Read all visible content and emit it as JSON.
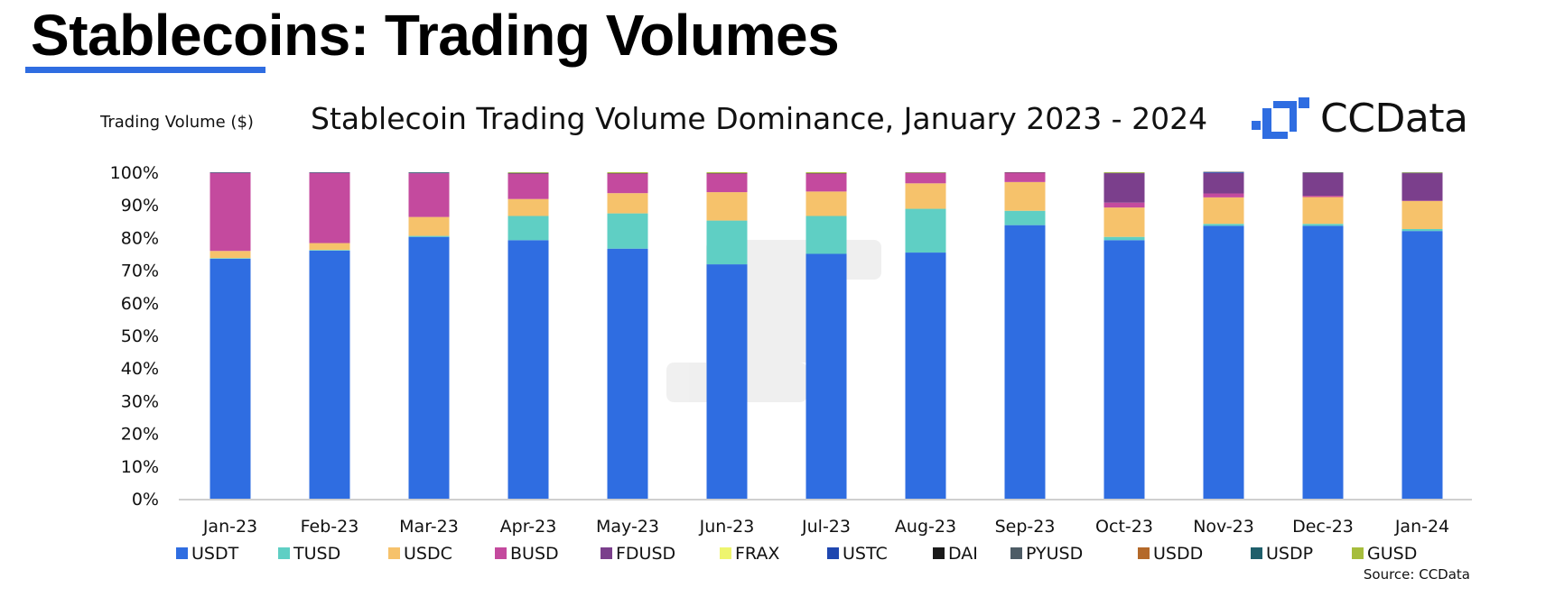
{
  "slide": {
    "title": "Stablecoins: Trading Volumes"
  },
  "brand": {
    "name": "CCData",
    "color": "#2f6de1"
  },
  "source": "Source: CCData",
  "chart_data": {
    "type": "bar",
    "stacked": true,
    "title": "Stablecoin Trading Volume Dominance, January 2023 - 2024",
    "ylabel": "Trading Volume ($)",
    "xlabel": "",
    "ylim": [
      0,
      100
    ],
    "yticks": [
      "0%",
      "10%",
      "20%",
      "30%",
      "40%",
      "50%",
      "60%",
      "70%",
      "80%",
      "90%",
      "100%"
    ],
    "legend_position": "bottom",
    "grid": false,
    "categories": [
      "Jan-23",
      "Feb-23",
      "Mar-23",
      "Apr-23",
      "May-23",
      "Jun-23",
      "Jul-23",
      "Aug-23",
      "Sep-23",
      "Oct-23",
      "Nov-23",
      "Dec-23",
      "Jan-24"
    ],
    "series": [
      {
        "name": "USDT",
        "color": "#2f6de1",
        "values": [
          73.5,
          76.0,
          80.2,
          79.2,
          76.6,
          71.8,
          75.0,
          75.4,
          83.8,
          79.2,
          83.6,
          83.6,
          82.0
        ]
      },
      {
        "name": "TUSD",
        "color": "#5fcfc4",
        "values": [
          0.2,
          0.2,
          0.3,
          7.4,
          10.8,
          13.4,
          11.6,
          13.4,
          4.4,
          1.0,
          0.6,
          0.6,
          0.6
        ]
      },
      {
        "name": "USDC",
        "color": "#f6c26b",
        "values": [
          2.2,
          2.1,
          5.8,
          5.2,
          6.2,
          8.7,
          7.5,
          7.8,
          8.8,
          9.0,
          8.1,
          8.2,
          8.6
        ]
      },
      {
        "name": "BUSD",
        "color": "#c44a9e",
        "values": [
          23.9,
          21.5,
          13.4,
          7.8,
          6.0,
          5.7,
          5.5,
          3.2,
          2.9,
          1.5,
          1.2,
          0.4,
          0.1
        ]
      },
      {
        "name": "FDUSD",
        "color": "#7b3f8c",
        "values": [
          0,
          0,
          0,
          0,
          0,
          0,
          0,
          0,
          0,
          9.0,
          6.3,
          7.0,
          8.4
        ]
      },
      {
        "name": "FRAX",
        "color": "#eef56e",
        "values": [
          0,
          0,
          0,
          0,
          0,
          0,
          0,
          0,
          0,
          0,
          0,
          0,
          0
        ]
      },
      {
        "name": "USTC",
        "color": "#1f47b0",
        "values": [
          0.1,
          0.1,
          0.1,
          0,
          0,
          0,
          0,
          0,
          0,
          0,
          0.2,
          0,
          0
        ]
      },
      {
        "name": "DAI",
        "color": "#1a1a1a",
        "values": [
          0.1,
          0.1,
          0.1,
          0.1,
          0.1,
          0.1,
          0.1,
          0.1,
          0.1,
          0.1,
          0.1,
          0.1,
          0.1
        ]
      },
      {
        "name": "PYUSD",
        "color": "#4d5c66",
        "values": [
          0,
          0,
          0,
          0,
          0,
          0,
          0,
          0,
          0,
          0,
          0,
          0.1,
          0.1
        ]
      },
      {
        "name": "USDD",
        "color": "#b4692a",
        "values": [
          0,
          0,
          0,
          0,
          0,
          0,
          0,
          0,
          0,
          0,
          0,
          0,
          0
        ]
      },
      {
        "name": "USDP",
        "color": "#1f5f6b",
        "values": [
          0,
          0,
          0.1,
          0.1,
          0,
          0,
          0,
          0,
          0,
          0,
          0,
          0,
          0
        ]
      },
      {
        "name": "GUSD",
        "color": "#a6bd3c",
        "values": [
          0,
          0,
          0,
          0.2,
          0.3,
          0.3,
          0.3,
          0.1,
          0,
          0.2,
          0,
          0,
          0.1
        ]
      }
    ]
  }
}
